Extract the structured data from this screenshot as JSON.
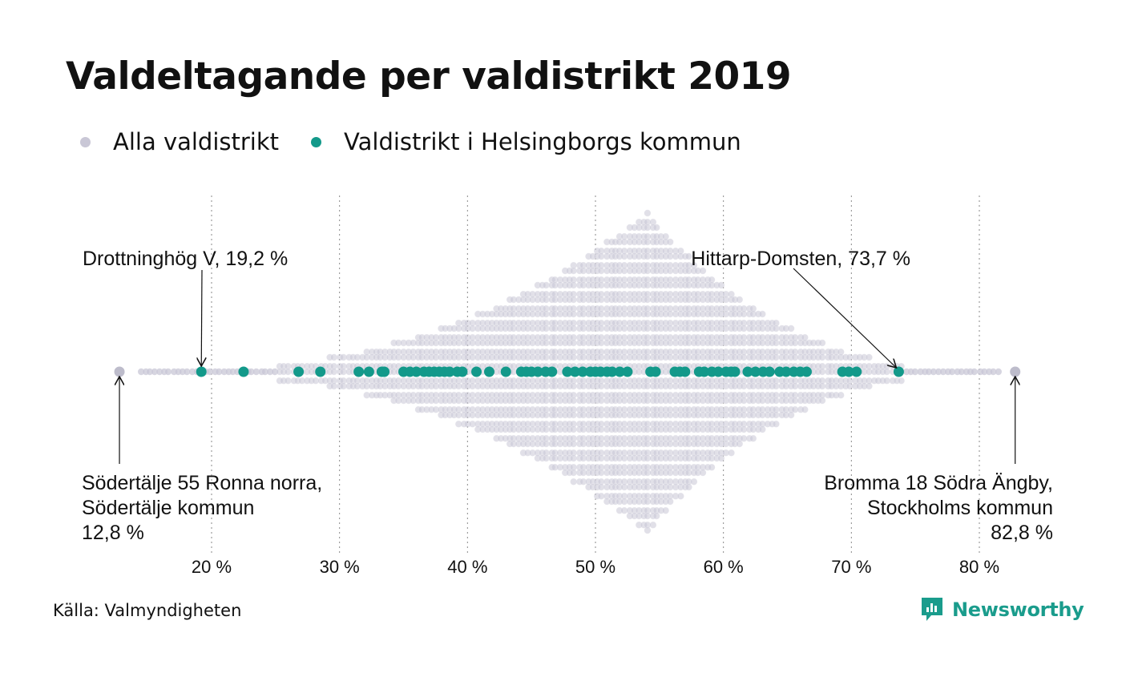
{
  "colors": {
    "all": "#c9c7d6",
    "helsingborg": "#13998a",
    "grid": "#8a8a8a",
    "brand": "#1a9c8c"
  },
  "legend": {
    "all_label": "Alla valdistrikt",
    "helsingborg_label": "Valdistrikt i Helsingborgs kommun"
  },
  "source": "Källa: Valmyndigheten",
  "brand": {
    "name": "Newsworthy",
    "icon": "newsworthy-logo-icon"
  },
  "chart_data": {
    "type": "scatter",
    "title": "Valdeltagande per valdistrikt 2019",
    "xlabel": "",
    "ylabel": "",
    "xlim": [
      12.0,
      84.0
    ],
    "ticks": [
      20,
      30,
      40,
      50,
      60,
      70,
      80
    ],
    "tick_labels": [
      "20 %",
      "30 %",
      "40 %",
      "50 %",
      "60 %",
      "70 %",
      "80 %"
    ],
    "grid": "vertical dotted",
    "series": [
      {
        "name": "Alla valdistrikt",
        "distribution": {
          "min": 12.8,
          "peak": 54.0,
          "max": 82.8
        },
        "highlighted": [
          12.8,
          82.8
        ]
      },
      {
        "name": "Valdistrikt i Helsingborgs kommun",
        "values": [
          19.2,
          22.5,
          26.8,
          28.5,
          31.5,
          32.3,
          33.3,
          33.5,
          35.0,
          35.5,
          36.0,
          36.6,
          37.0,
          37.4,
          37.8,
          38.2,
          38.6,
          39.2,
          39.6,
          40.7,
          41.7,
          43.0,
          44.2,
          44.6,
          45.0,
          45.5,
          46.1,
          46.6,
          47.8,
          48.4,
          49.0,
          49.6,
          50.0,
          50.4,
          50.9,
          51.3,
          51.9,
          52.5,
          54.3,
          54.7,
          56.2,
          56.6,
          57.0,
          58.1,
          58.5,
          59.1,
          59.6,
          60.2,
          60.6,
          60.9,
          61.9,
          62.5,
          63.1,
          63.6,
          64.4,
          64.9,
          65.5,
          66.0,
          66.5,
          69.3,
          69.8,
          70.4,
          73.7
        ]
      }
    ],
    "annotations": [
      {
        "label": "Drottninghög V, 19,2 %",
        "value": 19.2
      },
      {
        "label": "Hittarp-Domsten, 73,7 %",
        "value": 73.7
      },
      {
        "lines": [
          "Södertälje 55 Ronna norra,",
          "Södertälje kommun",
          "12,8 %"
        ],
        "value": 12.8
      },
      {
        "lines": [
          "Bromma 18 Södra Ängby,",
          "Stockholms kommun",
          "82,8 %"
        ],
        "value": 82.8
      }
    ]
  }
}
